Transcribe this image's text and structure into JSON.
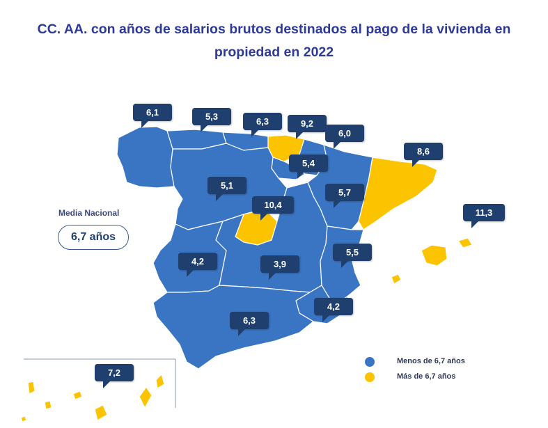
{
  "title": "CC. AA. con años de salarios brutos destinados al pago de la vivienda en propiedad en 2022",
  "media": {
    "label": "Media Nacional",
    "value": "6,7 años"
  },
  "legend": [
    {
      "label": "Menos de 6,7 años",
      "color": "#3a75c4"
    },
    {
      "label": "Más de 6,7 años",
      "color": "#fcc400"
    }
  ],
  "regions": [
    {
      "id": "galicia",
      "value": "6,1",
      "category": "below"
    },
    {
      "id": "asturias",
      "value": "5,3",
      "category": "below"
    },
    {
      "id": "cantabria",
      "value": "6,3",
      "category": "below"
    },
    {
      "id": "pais-vasco",
      "value": "9,2",
      "category": "above"
    },
    {
      "id": "navarra",
      "value": "6,0",
      "category": "below"
    },
    {
      "id": "la-rioja",
      "value": "5,4",
      "category": "below"
    },
    {
      "id": "cataluna",
      "value": "8,6",
      "category": "above"
    },
    {
      "id": "castilla-y-leon",
      "value": "5,1",
      "category": "below"
    },
    {
      "id": "aragon",
      "value": "5,7",
      "category": "below"
    },
    {
      "id": "madrid",
      "value": "10,4",
      "category": "above"
    },
    {
      "id": "baleares",
      "value": "11,3",
      "category": "above"
    },
    {
      "id": "extremadura",
      "value": "4,2",
      "category": "below"
    },
    {
      "id": "castilla-la-mancha",
      "value": "3,9",
      "category": "below"
    },
    {
      "id": "valencia",
      "value": "5,5",
      "category": "below"
    },
    {
      "id": "murcia",
      "value": "4,2",
      "category": "below"
    },
    {
      "id": "andalucia",
      "value": "6,3",
      "category": "below"
    },
    {
      "id": "canarias",
      "value": "7,2",
      "category": "above"
    }
  ]
}
